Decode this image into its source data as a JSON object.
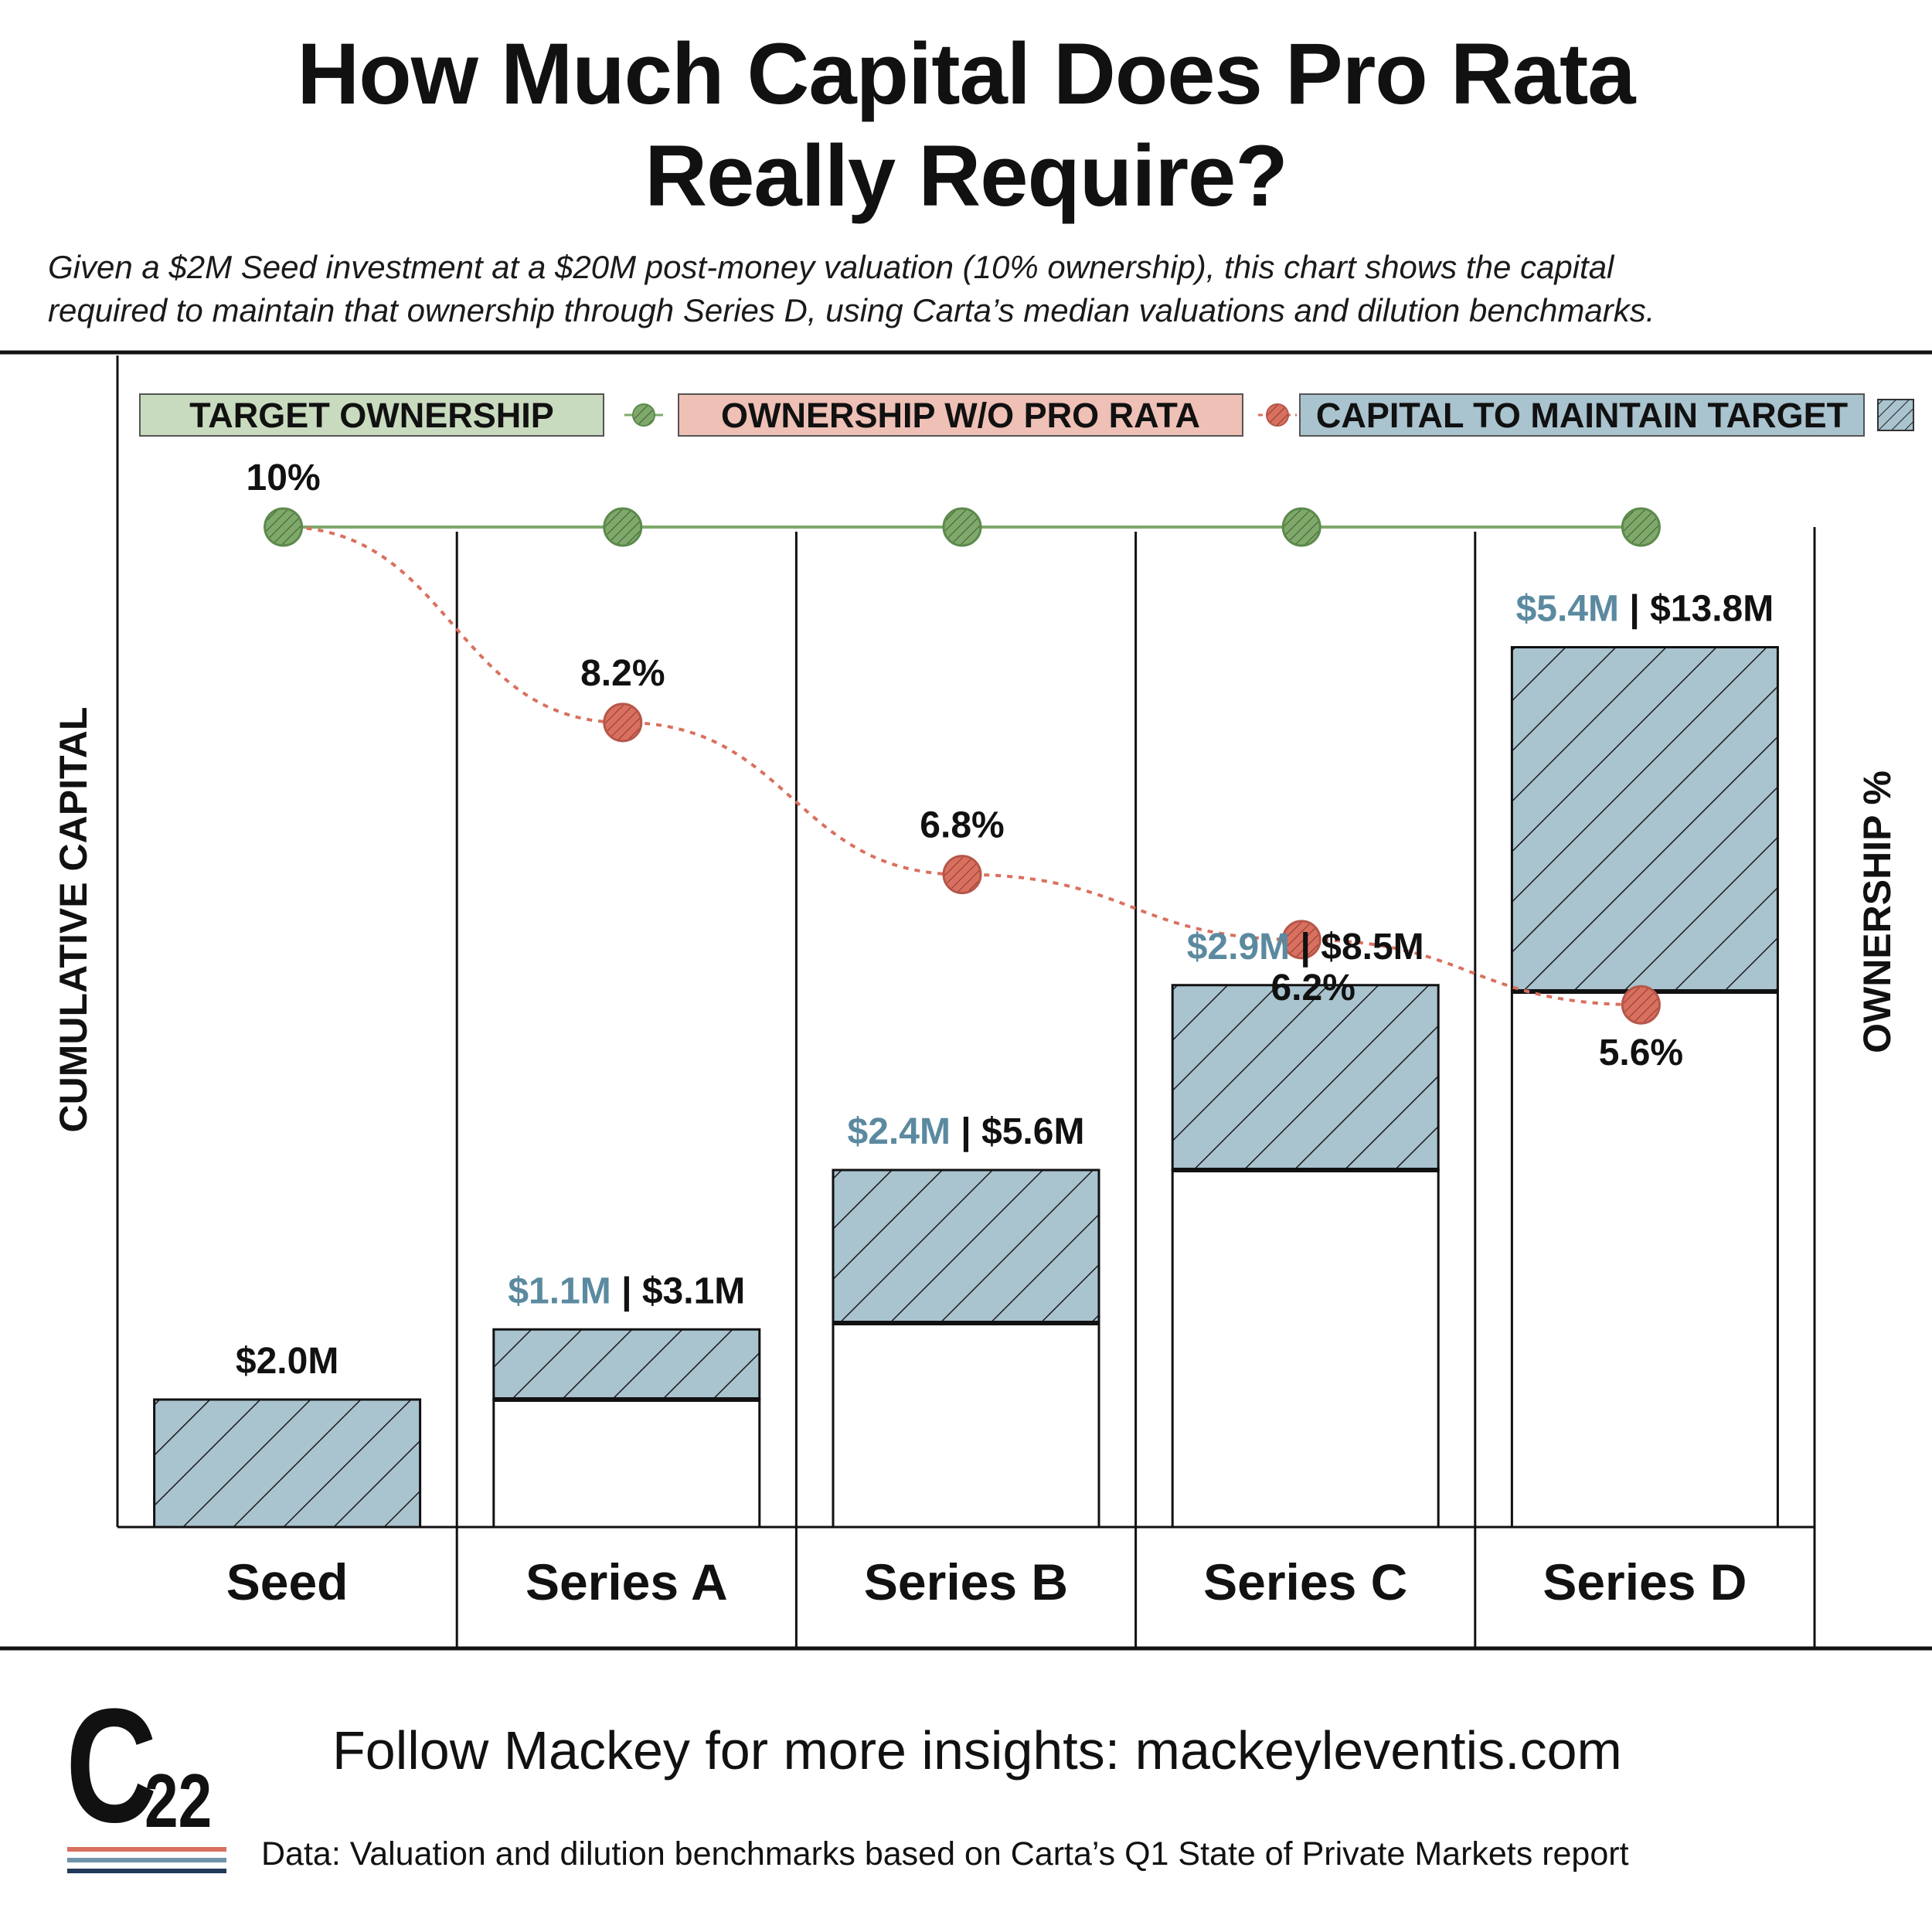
{
  "title_line1": "How Much Capital Does Pro Rata",
  "title_line2": "Really Require?",
  "subtitle_line1": "Given a $2M Seed investment at a $20M post-money valuation (10% ownership), this chart shows the capital",
  "subtitle_line2": "required to maintain that ownership through Series D, using Carta’s median valuations and dilution benchmarks.",
  "legend": {
    "target": "TARGET OWNERSHIP",
    "without": "OWNERSHIP W/O PRO RATA",
    "capital": "CAPITAL TO MAINTAIN TARGET"
  },
  "colors": {
    "target": "#7fa96b",
    "target_fill": "#c9dbbf",
    "without": "#d9705f",
    "without_fill": "#efc0b6",
    "capital": "#a9c3cf",
    "capital_text": "#5b8aa0"
  },
  "chart_data": {
    "type": "bar",
    "categories": [
      "Seed",
      "Series A",
      "Series B",
      "Series C",
      "Series D"
    ],
    "xlabel": "",
    "ylabel": "CUMULATIVE CAPITAL",
    "y2label": "OWNERSHIP %",
    "series": [
      {
        "name": "CAPITAL TO MAINTAIN TARGET",
        "values": [
          2.0,
          1.1,
          2.4,
          2.9,
          5.4
        ]
      },
      {
        "values": [
          0,
          2.0,
          3.2,
          5.6,
          8.4
        ]
      },
      {
        "name": "TARGET OWNERSHIP",
        "values": [
          10,
          10,
          10,
          10,
          10
        ]
      },
      {
        "name": "OWNERSHIP W/O PRO RATA",
        "values": [
          10,
          8.2,
          6.8,
          6.2,
          5.6
        ]
      }
    ],
    "increment_labels": [
      "",
      "$1.1M",
      "$2.4M",
      "$2.9M",
      "$5.4M"
    ],
    "total_labels": [
      "$2.0M",
      "$3.1M",
      "$5.6M",
      "$8.5M",
      "$13.8M"
    ],
    "ownership_labels": [
      "10%",
      "8.2%",
      "6.8%",
      "6.2%",
      "5.6%"
    ],
    "legend_position": "top"
  },
  "footer": "Follow Mackey for more insights: mackeyleventis.com",
  "source": "Data: Valuation and dilution benchmarks based on Carta’s Q1 State of Private Markets report",
  "logo": {
    "letter": "C",
    "number": "22"
  }
}
